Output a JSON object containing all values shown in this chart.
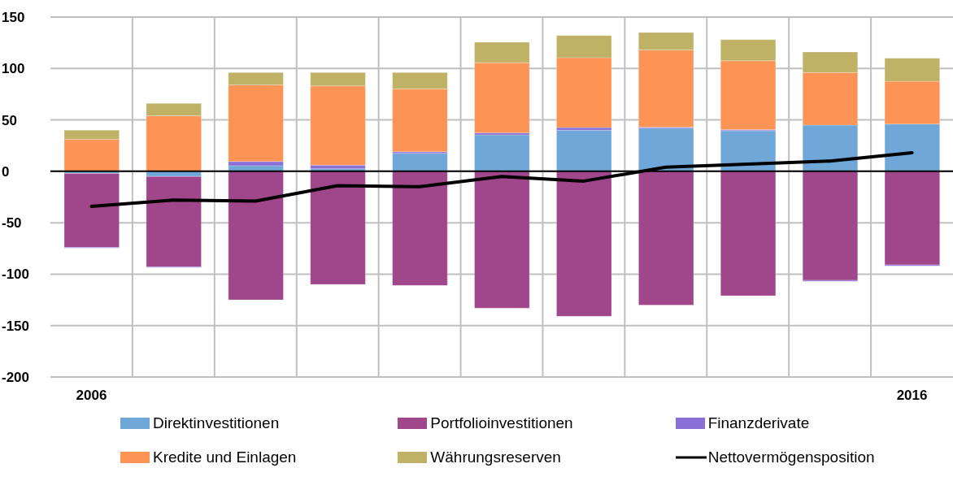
{
  "chart_data": {
    "type": "bar",
    "stacked": true,
    "categories": [
      "2006",
      null,
      null,
      null,
      null,
      null,
      null,
      null,
      null,
      null,
      "2016"
    ],
    "series": [
      {
        "name": "Direktinvestitionen",
        "color": "#6fa8d8",
        "values": [
          -2,
          -5,
          5.5,
          2.5,
          17.5,
          35.5,
          40,
          42,
          39.5,
          45,
          46
        ]
      },
      {
        "name": "Portfolioinvestitionen",
        "color": "#a0468a",
        "values": [
          -72,
          -88,
          -125,
          -110,
          -111,
          -133,
          -141,
          -130,
          -121,
          -106,
          -91
        ]
      },
      {
        "name": "Finanzderivate",
        "color": "#8a6fd8",
        "values": [
          -0.5,
          -0.5,
          4,
          3.5,
          1.5,
          2,
          2.5,
          1,
          1,
          -1,
          -1
        ]
      },
      {
        "name": "Kredite und Einlagen",
        "color": "#fd9355",
        "values": [
          31,
          54,
          74.5,
          77,
          61,
          68,
          68,
          75,
          67,
          51,
          41.5
        ]
      },
      {
        "name": "Währungsreserven",
        "color": "#bfb166",
        "values": [
          9,
          12,
          12,
          13,
          16,
          20,
          21.5,
          17,
          20.5,
          20,
          22.5
        ]
      },
      {
        "name": "Nettovermögensposition",
        "type": "line",
        "color": "#000000",
        "values": [
          -34,
          -28,
          -29,
          -14,
          -15,
          -5,
          -9.5,
          4,
          7,
          10,
          18
        ]
      }
    ],
    "ylim": [
      -200,
      150
    ],
    "yticks": [
      -200,
      -150,
      -100,
      -50,
      0,
      50,
      100,
      150
    ],
    "ref_lines": [
      {
        "axis": "y",
        "value": 0,
        "color": "#000000"
      }
    ],
    "grid": true,
    "legend": "bottom",
    "marker": "none",
    "line_style": "solid"
  }
}
